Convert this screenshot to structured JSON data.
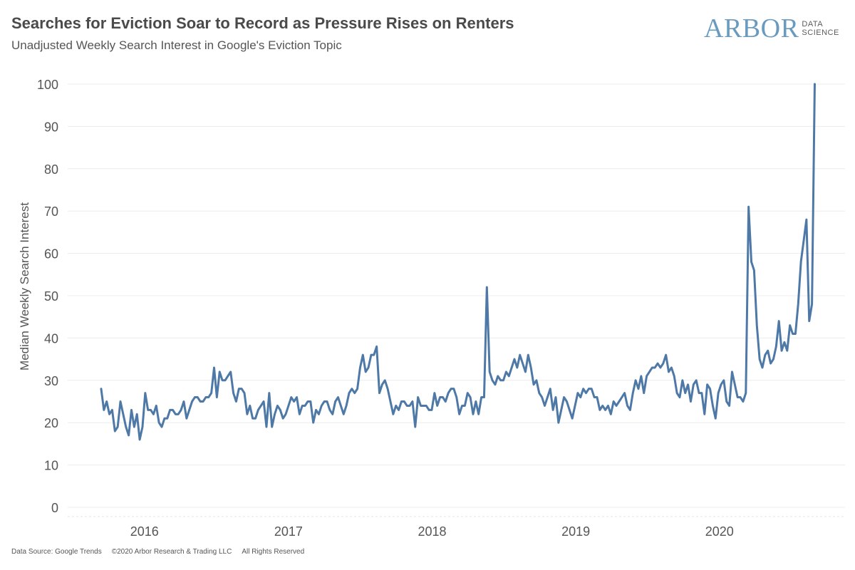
{
  "header": {
    "title": "Searches for Eviction Soar to Record as Pressure Rises on Renters",
    "subtitle": "Unadjusted Weekly Search Interest in Google's Eviction Topic"
  },
  "logo": {
    "main": "ARBOR",
    "line1": "DATA",
    "line2": "SCIENCE",
    "color": "#6a9bbf"
  },
  "footer": {
    "source": "Data Source: Google Trends",
    "copyright": "©2020 Arbor Research & Trading LLC",
    "rights": "All Rights Reserved"
  },
  "chart_data": {
    "type": "line",
    "title": "Searches for Eviction Soar to Record as Pressure Rises on Renters",
    "subtitle": "Unadjusted Weekly Search Interest in Google's Eviction Topic",
    "xlabel": "",
    "ylabel": "Median Weekly Search Interest",
    "xlim": [
      "2015-06-20",
      "2020-11-15"
    ],
    "ylim": [
      0,
      100
    ],
    "yticks": [
      0,
      10,
      20,
      30,
      40,
      50,
      60,
      70,
      80,
      90,
      100
    ],
    "xtick_labels": [
      "2016",
      "2017",
      "2018",
      "2019",
      "2020"
    ],
    "xtick_positions": [
      "2016-01-01",
      "2017-01-01",
      "2018-01-01",
      "2019-01-01",
      "2020-01-01"
    ],
    "grid": "horizontal",
    "line_color": "#4e79a7",
    "series": [
      {
        "frequency": "weekly",
        "start": "2015-09-13",
        "values": [
          28,
          23,
          25,
          22,
          23,
          18,
          19,
          25,
          22,
          19,
          17,
          23,
          19,
          22,
          16,
          19,
          27,
          23,
          23,
          22,
          24,
          20,
          19,
          21,
          21,
          23,
          23,
          22,
          22,
          23,
          25,
          21,
          23,
          25,
          26,
          26,
          25,
          25,
          26,
          26,
          27,
          33,
          26,
          32,
          30,
          30,
          31,
          32,
          27,
          25,
          28,
          28,
          27,
          22,
          24,
          21,
          21,
          23,
          24,
          25,
          19,
          27,
          19,
          22,
          24,
          23,
          21,
          22,
          24,
          26,
          25,
          26,
          22,
          24,
          24,
          25,
          25,
          20,
          23,
          22,
          24,
          25,
          25,
          23,
          22,
          25,
          26,
          24,
          22,
          24,
          27,
          28,
          27,
          28,
          33,
          36,
          32,
          33,
          36,
          36,
          38,
          27,
          29,
          30,
          28,
          25,
          22,
          24,
          23,
          25,
          25,
          24,
          24,
          25,
          19,
          26,
          24,
          24,
          24,
          23,
          23,
          27,
          24,
          26,
          26,
          25,
          27,
          28,
          28,
          26,
          22,
          24,
          24,
          27,
          26,
          22,
          25,
          22,
          26,
          26,
          52,
          32,
          30,
          29,
          31,
          30,
          30,
          32,
          31,
          33,
          35,
          33,
          36,
          34,
          32,
          36,
          33,
          29,
          30,
          27,
          26,
          24,
          26,
          28,
          23,
          26,
          20,
          23,
          26,
          25,
          23,
          21,
          24,
          27,
          26,
          28,
          27,
          28,
          28,
          26,
          26,
          23,
          24,
          23,
          24,
          22,
          25,
          24,
          25,
          26,
          27,
          24,
          23,
          27,
          30,
          28,
          31,
          27,
          31,
          32,
          33,
          33,
          34,
          33,
          34,
          36,
          32,
          33,
          31,
          27,
          26,
          30,
          27,
          29,
          25,
          29,
          30,
          27,
          27,
          22,
          29,
          28,
          24,
          21,
          27,
          29,
          30,
          25,
          24,
          32,
          29,
          26,
          26,
          25,
          27,
          71,
          58,
          56,
          43,
          35,
          33,
          36,
          37,
          34,
          35,
          38,
          44,
          37,
          39,
          37,
          43,
          41,
          41,
          48,
          58,
          63,
          68,
          44,
          48,
          100
        ]
      }
    ]
  }
}
